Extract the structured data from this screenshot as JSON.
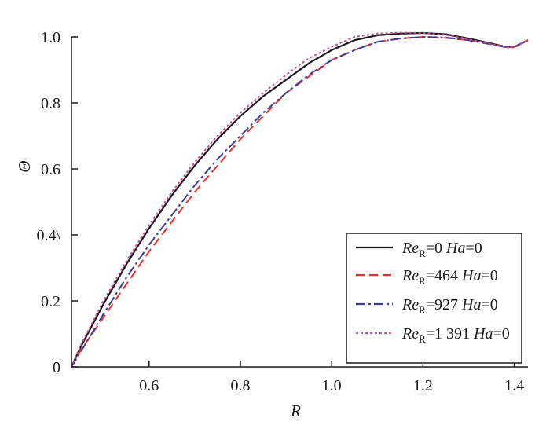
{
  "chart_data": {
    "type": "line",
    "title": "",
    "xlabel": "R",
    "ylabel": "Θ",
    "xlim": [
      0.43,
      1.43
    ],
    "ylim": [
      0,
      1.0
    ],
    "x_ticks": [
      {
        "value": 0.6,
        "label": "0.6"
      },
      {
        "value": 0.8,
        "label": "0.8"
      },
      {
        "value": 1.0,
        "label": "1.0"
      },
      {
        "value": 1.2,
        "label": "1.2"
      },
      {
        "value": 1.4,
        "label": "1.4"
      }
    ],
    "y_ticks": [
      {
        "value": 0,
        "label": "0"
      },
      {
        "value": 0.2,
        "label": "0.2"
      },
      {
        "value": 0.4,
        "label": "0.4\\"
      },
      {
        "value": 0.6,
        "label": "0.6"
      },
      {
        "value": 0.8,
        "label": "0.8"
      },
      {
        "value": 1.0,
        "label": "1.0"
      }
    ],
    "grid": false,
    "legend_position": "bottom-right",
    "series": [
      {
        "name": "ReR=0 Ha=0",
        "label_parts": [
          "Re",
          "R",
          "=0 ",
          "Ha",
          "=0"
        ],
        "color": "#1a1a1a",
        "dash": "solid",
        "x": [
          0.43,
          0.45,
          0.5,
          0.55,
          0.6,
          0.65,
          0.7,
          0.75,
          0.8,
          0.85,
          0.9,
          0.95,
          1.0,
          1.05,
          1.1,
          1.15,
          1.2,
          1.25,
          1.3,
          1.35,
          1.38,
          1.4,
          1.43
        ],
        "y": [
          0.0,
          0.06,
          0.19,
          0.31,
          0.42,
          0.52,
          0.61,
          0.69,
          0.76,
          0.82,
          0.87,
          0.92,
          0.96,
          0.99,
          1.005,
          1.01,
          1.012,
          1.008,
          0.995,
          0.98,
          0.97,
          0.97,
          0.99
        ]
      },
      {
        "name": "ReR=464 Ha=0",
        "label_parts": [
          "Re",
          "R",
          "=464 ",
          "Ha",
          "=0"
        ],
        "color": "#e8302f",
        "dash": "dashed",
        "x": [
          0.43,
          0.45,
          0.5,
          0.55,
          0.6,
          0.65,
          0.7,
          0.75,
          0.8,
          0.85,
          0.9,
          0.95,
          1.0,
          1.05,
          1.1,
          1.15,
          1.2,
          1.25,
          1.3,
          1.35,
          1.38,
          1.4,
          1.43
        ],
        "y": [
          0.0,
          0.05,
          0.15,
          0.25,
          0.35,
          0.44,
          0.53,
          0.61,
          0.69,
          0.76,
          0.83,
          0.88,
          0.93,
          0.96,
          0.985,
          0.995,
          1.0,
          0.997,
          0.99,
          0.978,
          0.97,
          0.97,
          0.99
        ]
      },
      {
        "name": "ReR=927 Ha=0",
        "label_parts": [
          "Re",
          "R",
          "=927 ",
          "Ha",
          "=0"
        ],
        "color": "#3b3d98",
        "dash": "dashdot",
        "x": [
          0.43,
          0.45,
          0.5,
          0.55,
          0.6,
          0.65,
          0.7,
          0.75,
          0.8,
          0.85,
          0.9,
          0.95,
          1.0,
          1.05,
          1.1,
          1.15,
          1.2,
          1.25,
          1.3,
          1.35,
          1.38,
          1.4,
          1.43
        ],
        "y": [
          0.0,
          0.045,
          0.16,
          0.27,
          0.37,
          0.46,
          0.55,
          0.63,
          0.7,
          0.77,
          0.83,
          0.885,
          0.93,
          0.96,
          0.985,
          0.995,
          1.0,
          0.998,
          0.99,
          0.977,
          0.97,
          0.97,
          0.99
        ]
      },
      {
        "name": "ReR=1 391 Ha=0",
        "label_parts": [
          "Re",
          "R",
          "=1 391 ",
          "Ha",
          "=0"
        ],
        "color": "#c8509a",
        "dash": "dotted",
        "x": [
          0.43,
          0.45,
          0.5,
          0.55,
          0.6,
          0.65,
          0.7,
          0.75,
          0.8,
          0.85,
          0.9,
          0.95,
          1.0,
          1.05,
          1.1,
          1.15,
          1.2,
          1.25,
          1.3,
          1.35,
          1.38,
          1.4,
          1.43
        ],
        "y": [
          0.0,
          0.065,
          0.2,
          0.32,
          0.43,
          0.53,
          0.62,
          0.7,
          0.77,
          0.83,
          0.885,
          0.935,
          0.97,
          1.0,
          1.01,
          1.013,
          1.012,
          1.006,
          0.993,
          0.978,
          0.968,
          0.968,
          0.99
        ]
      }
    ]
  }
}
